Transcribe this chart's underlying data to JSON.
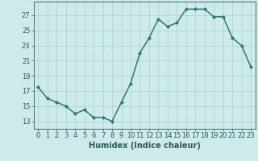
{
  "x": [
    0,
    1,
    2,
    3,
    4,
    5,
    6,
    7,
    8,
    9,
    10,
    11,
    12,
    13,
    14,
    15,
    16,
    17,
    18,
    19,
    20,
    21,
    22,
    23
  ],
  "y": [
    17.5,
    16.0,
    15.5,
    15.0,
    14.0,
    14.5,
    13.5,
    13.5,
    13.0,
    15.5,
    18.0,
    22.0,
    24.0,
    26.5,
    25.5,
    26.0,
    27.8,
    27.8,
    27.8,
    26.8,
    26.8,
    24.0,
    23.0,
    20.2
  ],
  "line_color": "#2d7a6e",
  "marker": "D",
  "marker_size": 2.2,
  "bg_color": "#ceeaea",
  "grid_color": "#aed4d4",
  "xlabel": "Humidex (Indice chaleur)",
  "xlim": [
    -0.5,
    23.5
  ],
  "ylim": [
    12.0,
    28.8
  ],
  "yticks": [
    13,
    15,
    17,
    19,
    21,
    23,
    25,
    27
  ],
  "xticks": [
    0,
    1,
    2,
    3,
    4,
    5,
    6,
    7,
    8,
    9,
    10,
    11,
    12,
    13,
    14,
    15,
    16,
    17,
    18,
    19,
    20,
    21,
    22,
    23
  ],
  "font_color": "#2d5a5a",
  "xlabel_fontsize": 7.0,
  "tick_fontsize": 6.0,
  "line_width": 1.1
}
